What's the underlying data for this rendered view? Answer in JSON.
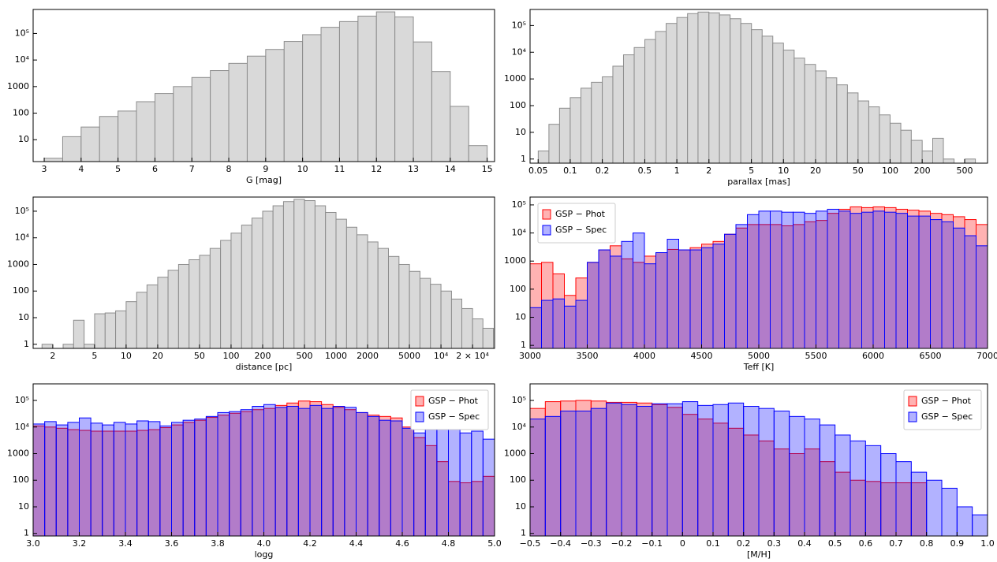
{
  "chart_data": [
    {
      "type": "histogram",
      "xlabel": "G [mag]",
      "color": "#d9d9d9",
      "xscale": "linear",
      "yscale": "log",
      "bins": [
        3,
        3.5,
        4,
        4.5,
        5,
        5.5,
        6,
        6.5,
        7,
        7.5,
        8,
        8.5,
        9,
        9.5,
        10,
        10.5,
        11,
        11.5,
        12,
        12.5,
        13,
        13.5,
        14,
        14.5,
        15
      ],
      "values": [
        2,
        13,
        30,
        75,
        120,
        270,
        550,
        1000,
        2200,
        4000,
        7500,
        14000,
        25000,
        50000,
        90000,
        170000,
        280000,
        450000,
        650000,
        420000,
        48000,
        3700,
        180,
        6
      ],
      "xlim": [
        2.7,
        15.2
      ],
      "xticks": [
        3,
        4,
        5,
        6,
        7,
        8,
        9,
        10,
        11,
        12,
        13,
        14,
        15
      ],
      "ylim": [
        1.5,
        800000
      ],
      "yticks": [
        10,
        100,
        1000,
        {
          "value": 10000,
          "label": "10⁴"
        },
        {
          "value": 100000,
          "label": "10⁵"
        }
      ]
    },
    {
      "type": "histogram",
      "xlabel": "parallax [mas]",
      "color": "#d9d9d9",
      "xscale": "log",
      "yscale": "log",
      "bins": [
        0.0501,
        0.0631,
        0.0794,
        0.1,
        0.126,
        0.158,
        0.2,
        0.251,
        0.316,
        0.398,
        0.501,
        0.631,
        0.794,
        1,
        1.26,
        1.58,
        2,
        2.51,
        3.16,
        3.98,
        5.01,
        6.31,
        7.94,
        10,
        12.6,
        15.8,
        20,
        25.1,
        31.6,
        39.8,
        50.1,
        63.1,
        79.4,
        100,
        126,
        158,
        200,
        251,
        316,
        398,
        501,
        631
      ],
      "values": [
        2,
        20,
        80,
        200,
        450,
        750,
        1200,
        3000,
        8000,
        15000,
        30000,
        60000,
        120000,
        200000,
        280000,
        320000,
        300000,
        250000,
        180000,
        120000,
        70000,
        40000,
        22000,
        12000,
        6000,
        3500,
        2000,
        1100,
        600,
        300,
        150,
        90,
        45,
        22,
        12,
        5,
        2,
        6,
        1,
        0,
        1
      ],
      "xlim": [
        0.042,
        820
      ],
      "xticks": [
        0.05,
        0.1,
        0.2,
        0.5,
        1,
        2,
        5,
        10,
        20,
        50,
        100,
        200,
        500
      ],
      "ylim": [
        0.7,
        400000
      ],
      "yticks": [
        1,
        10,
        100,
        1000,
        {
          "value": 10000,
          "label": "10⁴"
        },
        {
          "value": 100000,
          "label": "10⁵"
        }
      ]
    },
    {
      "type": "histogram",
      "xlabel": "distance [pc]",
      "color": "#d9d9d9",
      "xscale": "log",
      "yscale": "log",
      "bins": [
        1.58,
        2,
        2.51,
        3.16,
        3.98,
        5.01,
        6.31,
        7.94,
        10,
        12.6,
        15.8,
        20,
        25.1,
        31.6,
        39.8,
        50.1,
        63.1,
        79.4,
        100,
        126,
        158,
        200,
        251,
        316,
        398,
        501,
        631,
        794,
        1000,
        1260,
        1580,
        2000,
        2510,
        3160,
        3980,
        5010,
        6310,
        7940,
        10000,
        12600,
        15800,
        20000,
        25100,
        31600
      ],
      "values": [
        1,
        0,
        1,
        8,
        1,
        14,
        15,
        18,
        40,
        90,
        170,
        330,
        600,
        1000,
        1500,
        2200,
        4000,
        8000,
        15000,
        30000,
        55000,
        100000,
        160000,
        230000,
        280000,
        250000,
        160000,
        90000,
        50000,
        25000,
        13000,
        7000,
        4000,
        2000,
        1000,
        550,
        300,
        180,
        100,
        50,
        22,
        9,
        4
      ],
      "xlim": [
        1.3,
        32400
      ],
      "xticks": [
        2,
        5,
        10,
        20,
        50,
        100,
        200,
        500,
        1000,
        2000,
        5000,
        {
          "value": 10000,
          "label": "10⁴"
        },
        {
          "value": 20000,
          "label": "2 × 10⁴"
        }
      ],
      "ylim": [
        0.7,
        340000
      ],
      "yticks": [
        1,
        10,
        100,
        1000,
        {
          "value": 10000,
          "label": "10⁴"
        },
        {
          "value": 100000,
          "label": "10⁵"
        }
      ]
    },
    {
      "type": "histogram",
      "xlabel": "Teff [K]",
      "xscale": "linear",
      "yscale": "log",
      "legend": "upper left",
      "bins": [
        3000,
        3100,
        3200,
        3300,
        3400,
        3500,
        3600,
        3700,
        3800,
        3900,
        4000,
        4100,
        4200,
        4300,
        4400,
        4500,
        4600,
        4700,
        4800,
        4900,
        5000,
        5100,
        5200,
        5300,
        5400,
        5500,
        5600,
        5700,
        5800,
        5900,
        6000,
        6100,
        6200,
        6300,
        6400,
        6500,
        6600,
        6700,
        6800,
        6900,
        7000
      ],
      "series": [
        {
          "name": "GSP − Phot",
          "color": "#ff0000",
          "values": [
            800,
            900,
            350,
            60,
            250,
            900,
            2500,
            3500,
            1200,
            900,
            1500,
            2000,
            2600,
            2500,
            3000,
            4000,
            5000,
            9000,
            15000,
            20000,
            20000,
            20000,
            18000,
            20000,
            25000,
            28000,
            50000,
            70000,
            85000,
            80000,
            85000,
            80000,
            70000,
            65000,
            60000,
            50000,
            45000,
            38000,
            30000,
            20000
          ]
        },
        {
          "name": "GSP − Spec",
          "color": "#0000ff",
          "values": [
            22,
            40,
            45,
            25,
            40,
            900,
            2500,
            1500,
            5000,
            10000,
            800,
            2000,
            6000,
            2500,
            2500,
            3000,
            4000,
            9000,
            20000,
            45000,
            60000,
            60000,
            55000,
            55000,
            50000,
            60000,
            70000,
            60000,
            50000,
            55000,
            60000,
            55000,
            50000,
            40000,
            40000,
            30000,
            25000,
            15000,
            8000,
            3500
          ]
        }
      ],
      "xlim": [
        3000,
        7000
      ],
      "xticks": [
        3000,
        3500,
        4000,
        4500,
        5000,
        5500,
        6000,
        6500,
        7000
      ],
      "ylim": [
        0.78,
        190000
      ],
      "yticks": [
        1,
        10,
        100,
        1000,
        {
          "value": 10000,
          "label": "10⁴"
        },
        {
          "value": 100000,
          "label": "10⁵"
        }
      ]
    },
    {
      "type": "histogram",
      "xlabel": "logg",
      "xscale": "linear",
      "yscale": "log",
      "legend": "upper right",
      "bins": [
        3,
        3.05,
        3.1,
        3.15,
        3.2,
        3.25,
        3.3,
        3.35,
        3.4,
        3.45,
        3.5,
        3.55,
        3.6,
        3.65,
        3.7,
        3.75,
        3.8,
        3.85,
        3.9,
        3.95,
        4,
        4.05,
        4.1,
        4.15,
        4.2,
        4.25,
        4.3,
        4.35,
        4.4,
        4.45,
        4.5,
        4.55,
        4.6,
        4.65,
        4.7,
        4.75,
        4.8,
        4.85,
        4.9,
        4.95,
        5
      ],
      "series": [
        {
          "name": "GSP − Phot",
          "color": "#ff0000",
          "values": [
            11000,
            10000,
            9000,
            8000,
            7500,
            7000,
            7000,
            7000,
            7000,
            7500,
            8000,
            9500,
            12000,
            15000,
            18000,
            23000,
            28000,
            33000,
            38000,
            45000,
            50000,
            65000,
            80000,
            95000,
            90000,
            70000,
            55000,
            45000,
            35000,
            28000,
            25000,
            22000,
            10000,
            4000,
            2000,
            500,
            90,
            80,
            90,
            140
          ]
        },
        {
          "name": "GSP − Spec",
          "color": "#0000ff",
          "values": [
            13000,
            16000,
            12000,
            15000,
            22000,
            14000,
            12000,
            15000,
            13000,
            17000,
            16000,
            11000,
            15000,
            18000,
            20000,
            25000,
            35000,
            38000,
            45000,
            60000,
            70000,
            55000,
            60000,
            50000,
            65000,
            50000,
            60000,
            55000,
            35000,
            25000,
            18000,
            17000,
            9000,
            6000,
            8000,
            10000,
            10000,
            6000,
            7000,
            3500
          ]
        }
      ],
      "xlim": [
        3,
        5
      ],
      "xticks": [
        {
          "value": 3,
          "label": "3.0"
        },
        3.2,
        3.4,
        3.6,
        3.8,
        {
          "value": 4,
          "label": "4.0"
        },
        4.2,
        4.4,
        4.6,
        4.8,
        {
          "value": 5,
          "label": "5.0"
        }
      ],
      "ylim": [
        0.8,
        420000
      ],
      "yticks": [
        1,
        10,
        100,
        1000,
        {
          "value": 10000,
          "label": "10⁴"
        },
        {
          "value": 100000,
          "label": "10⁵"
        }
      ]
    },
    {
      "type": "histogram",
      "xlabel": "[M/H]",
      "xscale": "linear",
      "yscale": "log",
      "legend": "upper right",
      "bins": [
        -0.5,
        -0.45,
        -0.4,
        -0.35,
        -0.3,
        -0.25,
        -0.2,
        -0.15,
        -0.1,
        -0.05,
        0,
        0.05,
        0.1,
        0.15,
        0.2,
        0.25,
        0.3,
        0.35,
        0.4,
        0.45,
        0.5,
        0.55,
        0.6,
        0.65,
        0.7,
        0.75,
        0.8,
        0.85,
        0.9,
        0.95,
        1
      ],
      "series": [
        {
          "name": "GSP − Phot",
          "color": "#ff0000",
          "values": [
            50000,
            90000,
            95000,
            100000,
            95000,
            85000,
            85000,
            80000,
            70000,
            55000,
            30000,
            20000,
            14000,
            9000,
            5000,
            3000,
            1500,
            1000,
            1500,
            500,
            200,
            100,
            90,
            80,
            80,
            80,
            0,
            0,
            0,
            0
          ]
        },
        {
          "name": "GSP − Spec",
          "color": "#0000ff",
          "values": [
            20000,
            25000,
            40000,
            40000,
            50000,
            80000,
            70000,
            60000,
            75000,
            75000,
            90000,
            65000,
            70000,
            80000,
            60000,
            50000,
            40000,
            25000,
            20000,
            12000,
            5000,
            3000,
            2000,
            1000,
            500,
            200,
            100,
            50,
            10,
            5
          ]
        }
      ],
      "xlim": [
        -0.5,
        1
      ],
      "xticks": [
        {
          "value": -0.5,
          "label": "−0.5"
        },
        {
          "value": -0.4,
          "label": "−0.4"
        },
        {
          "value": -0.3,
          "label": "−0.3"
        },
        {
          "value": -0.2,
          "label": "−0.2"
        },
        {
          "value": -0.1,
          "label": "−0.1"
        },
        0,
        0.1,
        0.2,
        0.3,
        0.4,
        0.5,
        0.6,
        0.7,
        0.8,
        0.9,
        {
          "value": 1,
          "label": "1.0"
        }
      ],
      "ylim": [
        0.8,
        420000
      ],
      "yticks": [
        1,
        10,
        100,
        1000,
        {
          "value": 10000,
          "label": "10⁴"
        },
        {
          "value": 100000,
          "label": "10⁵"
        }
      ]
    }
  ]
}
